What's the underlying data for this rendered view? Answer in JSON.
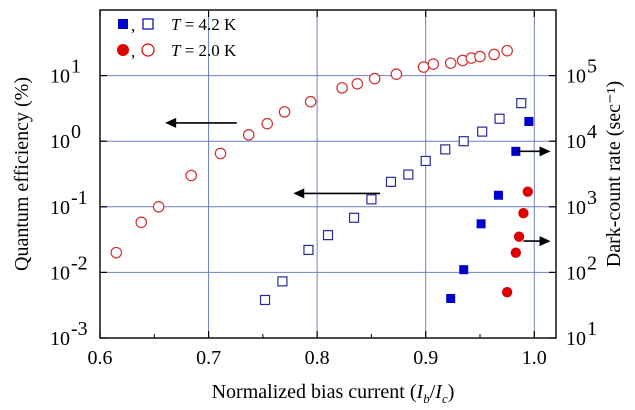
{
  "chart_data": {
    "type": "scatter",
    "xlabel": "Normalized bias current (I_b/I_c)",
    "ylabel_left": "Quantum efficiency (%)",
    "ylabel_right": "Dark-count rate (sec⁻¹)",
    "xlim": [
      0.6,
      1.02
    ],
    "ylim_left": [
      0.001,
      100
    ],
    "ylim_right": [
      10,
      1000000
    ],
    "y_scale": "log",
    "grid": true,
    "x_ticks": [
      "0.6",
      "0.7",
      "0.8",
      "0.9",
      "1.0"
    ],
    "y_left_ticks": [
      {
        "base": "10",
        "exp": "-3"
      },
      {
        "base": "10",
        "exp": "-2"
      },
      {
        "base": "10",
        "exp": "-1"
      },
      {
        "base": "10",
        "exp": "0"
      },
      {
        "base": "10",
        "exp": "1"
      }
    ],
    "y_right_ticks": [
      {
        "base": "10",
        "exp": "1"
      },
      {
        "base": "10",
        "exp": "2"
      },
      {
        "base": "10",
        "exp": "3"
      },
      {
        "base": "10",
        "exp": "4"
      },
      {
        "base": "10",
        "exp": "5"
      }
    ],
    "legend_position": "top-left",
    "legend": [
      {
        "T_label": "T",
        "value": " = 4.2 K",
        "marker": "square",
        "color": "#0000cc"
      },
      {
        "T_label": "T",
        "value": " = 2.0 K",
        "marker": "circle",
        "color": "#e00000"
      }
    ],
    "series": [
      {
        "marker": "square-open",
        "color": "#2a2a9a",
        "axis": "left",
        "x": [
          0.752,
          0.768,
          0.792,
          0.81,
          0.834,
          0.85,
          0.868,
          0.884,
          0.9,
          0.918,
          0.935,
          0.952,
          0.968,
          0.988
        ],
        "y": [
          0.0038,
          0.0073,
          0.022,
          0.037,
          0.068,
          0.13,
          0.24,
          0.31,
          0.5,
          0.75,
          1.0,
          1.4,
          2.2,
          3.8
        ]
      },
      {
        "marker": "circle-open",
        "color": "#d03030",
        "axis": "left",
        "x": [
          0.615,
          0.638,
          0.654,
          0.684,
          0.711,
          0.737,
          0.754,
          0.77,
          0.794,
          0.823,
          0.837,
          0.853,
          0.873,
          0.898,
          0.907,
          0.923,
          0.934,
          0.942,
          0.95,
          0.963,
          0.975
        ],
        "y": [
          0.02,
          0.058,
          0.1,
          0.3,
          0.65,
          1.25,
          1.85,
          2.8,
          4.0,
          6.5,
          7.5,
          9.0,
          10.5,
          13.5,
          15.0,
          15.5,
          17.0,
          18.5,
          19.5,
          21.0,
          24.0
        ]
      },
      {
        "marker": "square-filled",
        "color": "#0000cc",
        "axis": "right",
        "x": [
          0.923,
          0.935,
          0.951,
          0.967,
          0.983,
          0.995
        ],
        "y": [
          40,
          110,
          550,
          1500,
          7000,
          20000
        ]
      },
      {
        "marker": "circle-filled",
        "color": "#e00000",
        "axis": "right",
        "x": [
          0.975,
          0.983,
          0.986,
          0.99,
          0.994
        ],
        "y": [
          50,
          200,
          350,
          800,
          1700
        ]
      }
    ],
    "annotations": [
      {
        "type": "arrow",
        "direction": "left",
        "x1": 0.726,
        "x2": 0.66,
        "y": 1.9,
        "axis": "left"
      },
      {
        "type": "arrow",
        "direction": "left",
        "x1": 0.858,
        "x2": 0.778,
        "y": 0.16,
        "axis": "left"
      },
      {
        "type": "arrow",
        "direction": "right",
        "x1": 0.985,
        "x2": 1.015,
        "y": 7000,
        "axis": "right"
      },
      {
        "type": "arrow",
        "direction": "right",
        "x1": 0.99,
        "x2": 1.015,
        "y": 300,
        "axis": "right"
      }
    ]
  }
}
